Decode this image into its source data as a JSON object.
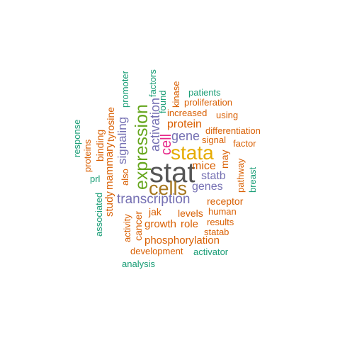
{
  "colors": {
    "green": "#1b9e77",
    "orange": "#d95f02",
    "purple": "#7570b3",
    "magenta": "#e7298a",
    "lime": "#66a61e",
    "gold": "#e6ab02",
    "brown": "#a6761d",
    "gray": "#555555"
  },
  "words": [
    {
      "text": "stat",
      "color": "gray"
    },
    {
      "text": "stata",
      "color": "gold"
    },
    {
      "text": "cells",
      "color": "brown"
    },
    {
      "text": "expression",
      "color": "lime"
    },
    {
      "text": "cell",
      "color": "magenta"
    },
    {
      "text": "transcription",
      "color": "purple"
    },
    {
      "text": "gene",
      "color": "purple"
    },
    {
      "text": "signaling",
      "color": "purple"
    },
    {
      "text": "activation",
      "color": "purple"
    },
    {
      "text": "protein",
      "color": "orange"
    },
    {
      "text": "mice",
      "color": "orange"
    },
    {
      "text": "statb",
      "color": "purple"
    },
    {
      "text": "genes",
      "color": "purple"
    },
    {
      "text": "receptor",
      "color": "orange"
    },
    {
      "text": "levels",
      "color": "orange"
    },
    {
      "text": "human",
      "color": "orange"
    },
    {
      "text": "growth",
      "color": "orange"
    },
    {
      "text": "role",
      "color": "orange"
    },
    {
      "text": "results",
      "color": "orange"
    },
    {
      "text": "statab",
      "color": "orange"
    },
    {
      "text": "jak",
      "color": "orange"
    },
    {
      "text": "cancer",
      "color": "orange"
    },
    {
      "text": "phosphorylation",
      "color": "orange"
    },
    {
      "text": "development",
      "color": "orange"
    },
    {
      "text": "activator",
      "color": "green"
    },
    {
      "text": "analysis",
      "color": "green"
    },
    {
      "text": "activity",
      "color": "orange"
    },
    {
      "text": "also",
      "color": "orange"
    },
    {
      "text": "mammary",
      "color": "orange"
    },
    {
      "text": "study",
      "color": "orange"
    },
    {
      "text": "tyrosine",
      "color": "orange"
    },
    {
      "text": "binding",
      "color": "orange"
    },
    {
      "text": "proteins",
      "color": "orange"
    },
    {
      "text": "response",
      "color": "green"
    },
    {
      "text": "prl",
      "color": "green"
    },
    {
      "text": "associated",
      "color": "green"
    },
    {
      "text": "promoter",
      "color": "green"
    },
    {
      "text": "factors",
      "color": "green"
    },
    {
      "text": "found",
      "color": "green"
    },
    {
      "text": "kinase",
      "color": "orange"
    },
    {
      "text": "patients",
      "color": "green"
    },
    {
      "text": "proliferation",
      "color": "orange"
    },
    {
      "text": "increased",
      "color": "orange"
    },
    {
      "text": "using",
      "color": "orange"
    },
    {
      "text": "signal",
      "color": "orange"
    },
    {
      "text": "differentiation",
      "color": "orange"
    },
    {
      "text": "factor",
      "color": "orange"
    },
    {
      "text": "may",
      "color": "orange"
    },
    {
      "text": "pathway",
      "color": "orange"
    },
    {
      "text": "breast",
      "color": "green"
    }
  ]
}
